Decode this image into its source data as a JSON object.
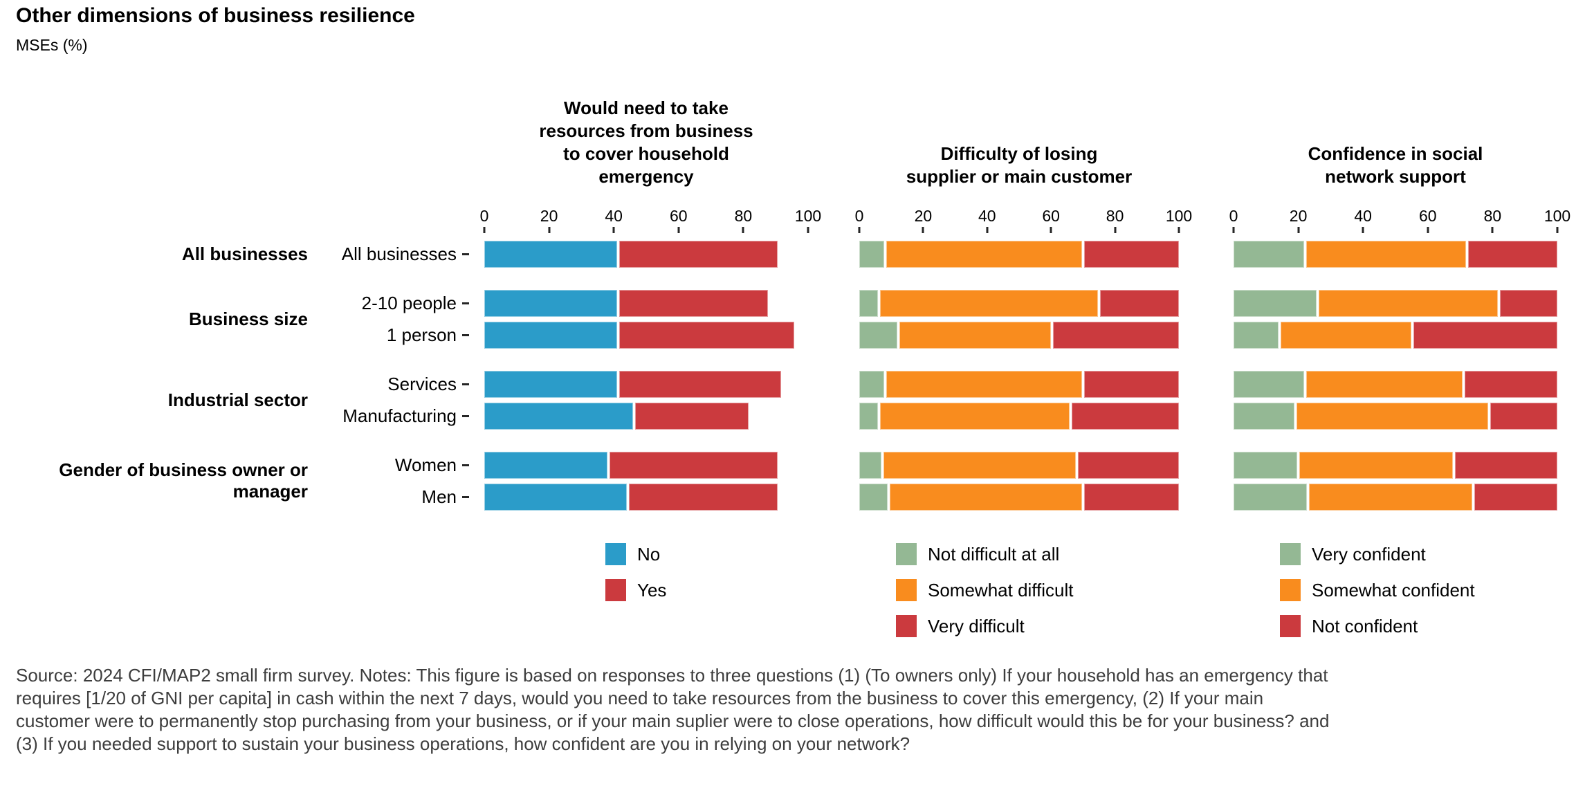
{
  "title": "Other dimensions of business resilience",
  "subtitle": "MSEs (%)",
  "source_note": "Source: 2024 CFI/MAP2 small firm survey. Notes: This figure is based on responses to three questions (1) (To owners only) If your household has an emergency that requires [1/20 of GNI per capita] in cash within the next 7 days, would you need to take resources from the business to cover this emergency, (2) If your main customer were to permanently stop purchasing from your business, or if your main suplier were to close operations, how difficult would this be for your business? and (3) If you needed support to sustain your business operations, how confident are you in relying on your network?",
  "colors": {
    "blue": "#2B9CC9",
    "red": "#CB3A3E",
    "green": "#94B894",
    "orange": "#F98C1E",
    "tick": "#262626",
    "note_text": "#3d3d3d"
  },
  "row_groups": [
    {
      "label": "All businesses",
      "items": [
        "All businesses"
      ]
    },
    {
      "label": "Business size",
      "items": [
        "2-10 people",
        "1 person"
      ]
    },
    {
      "label": "Industrial sector",
      "items": [
        "Services",
        "Manufacturing"
      ]
    },
    {
      "label": "Gender of business owner or manager",
      "items": [
        "Women",
        "Men"
      ]
    }
  ],
  "axis": {
    "ticks": [
      0,
      20,
      40,
      60,
      80,
      100
    ],
    "xlim": [
      0,
      100
    ]
  },
  "chart_data": [
    {
      "type": "bar",
      "orientation": "horizontal",
      "stacked": true,
      "title": "Would need to take\nresources from business\nto cover household\nemergency",
      "categories": [
        "All businesses",
        "2-10 people",
        "1 person",
        "Services",
        "Manufacturing",
        "Women",
        "Men"
      ],
      "xlim": [
        0,
        100
      ],
      "ticks": [
        0,
        20,
        40,
        60,
        80,
        100
      ],
      "grid": false,
      "legend_position": "bottom",
      "series": [
        {
          "name": "No",
          "color": "#2B9CC9",
          "values": [
            41,
            41,
            41,
            41,
            46,
            38,
            44
          ]
        },
        {
          "name": "Yes",
          "color": "#CB3A3E",
          "values": [
            49,
            46,
            54,
            50,
            35,
            52,
            46
          ]
        }
      ]
    },
    {
      "type": "bar",
      "orientation": "horizontal",
      "stacked": true,
      "title": "Difficulty of losing\nsupplier or main customer",
      "categories": [
        "All businesses",
        "2-10 people",
        "1 person",
        "Services",
        "Manufacturing",
        "Women",
        "Men"
      ],
      "xlim": [
        0,
        100
      ],
      "ticks": [
        0,
        20,
        40,
        60,
        80,
        100
      ],
      "grid": false,
      "legend_position": "bottom",
      "series": [
        {
          "name": "Not difficult at all",
          "color": "#94B894",
          "values": [
            8,
            6,
            12,
            8,
            6,
            7,
            9
          ]
        },
        {
          "name": "Somewhat difficult",
          "color": "#F98C1E",
          "values": [
            62,
            69,
            48,
            62,
            60,
            61,
            61
          ]
        },
        {
          "name": "Very difficult",
          "color": "#CB3A3E",
          "values": [
            30,
            25,
            40,
            30,
            34,
            32,
            30
          ]
        }
      ]
    },
    {
      "type": "bar",
      "orientation": "horizontal",
      "stacked": true,
      "title": "Confidence in social\nnetwork support",
      "categories": [
        "All businesses",
        "2-10 people",
        "1 person",
        "Services",
        "Manufacturing",
        "Women",
        "Men"
      ],
      "xlim": [
        0,
        100
      ],
      "ticks": [
        0,
        20,
        40,
        60,
        80,
        100
      ],
      "grid": false,
      "legend_position": "bottom",
      "series": [
        {
          "name": "Very confident",
          "color": "#94B894",
          "values": [
            22,
            26,
            14,
            22,
            19,
            20,
            23
          ]
        },
        {
          "name": "Somewhat confident",
          "color": "#F98C1E",
          "values": [
            50,
            56,
            41,
            49,
            60,
            48,
            51
          ]
        },
        {
          "name": "Not confident",
          "color": "#CB3A3E",
          "values": [
            28,
            18,
            45,
            29,
            21,
            32,
            26
          ]
        }
      ]
    }
  ]
}
